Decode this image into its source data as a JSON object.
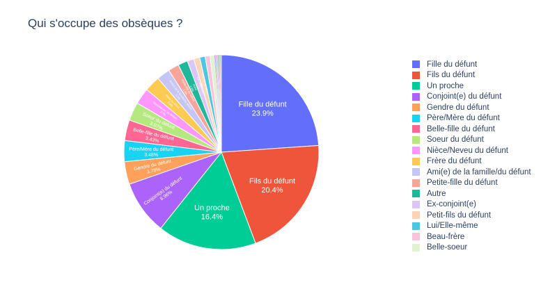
{
  "chart_data": {
    "type": "pie",
    "title": "Qui s'occupe des obsèques ?",
    "legend_position": "right",
    "slices": [
      {
        "label": "Fille du défunt",
        "value": 23.9,
        "color": "#636efa"
      },
      {
        "label": "Fils du défunt",
        "value": 20.4,
        "color": "#ef553b"
      },
      {
        "label": "Un proche",
        "value": 16.4,
        "color": "#00cc96"
      },
      {
        "label": "Conjoint(e) du défunt",
        "value": 8.96,
        "color": "#ab63fa"
      },
      {
        "label": "Gendre du défunt",
        "value": 3.78,
        "color": "#ffa15a"
      },
      {
        "label": "Père/Mère du défunt",
        "value": 3.48,
        "color": "#19d3f3"
      },
      {
        "label": "Belle-fille du défunt",
        "value": 3.43,
        "color": "#ff6692"
      },
      {
        "label": "Soeur du défunt",
        "value": 3.07,
        "color": "#b6e880"
      },
      {
        "label": "Nièce/Neveu du défunt",
        "value": 2.7,
        "color": "#ff97ff"
      },
      {
        "label": "Frère du défunt",
        "value": 2.6,
        "color": "#fecb52"
      },
      {
        "label": "Ami(e) de la famille/du défunt",
        "value": 2.2,
        "color": "#c6c6f5"
      },
      {
        "label": "Petite-fille du défunt",
        "value": 1.8,
        "color": "#f7a59a"
      },
      {
        "label": "Autre",
        "value": 1.6,
        "color": "#1fb89b"
      },
      {
        "label": "Ex-conjoint(e)",
        "value": 1.1,
        "color": "#dcc6f7"
      },
      {
        "label": "Petit-fils du défunt",
        "value": 1.0,
        "color": "#fcd4b8"
      },
      {
        "label": "Lui/Elle-même",
        "value": 0.9,
        "color": "#4cc7df"
      },
      {
        "label": "Beau-frère",
        "value": 0.8,
        "color": "#f9c3d9"
      },
      {
        "label": "Belle-soeur",
        "value": 0.7,
        "color": "#e0f2cf"
      }
    ],
    "other_slice_colors": [
      "#636efa",
      "#ef553b",
      "#00cc96",
      "#ab63fa",
      "#ffa15a",
      "#19d3f3",
      "#ff6692"
    ]
  }
}
